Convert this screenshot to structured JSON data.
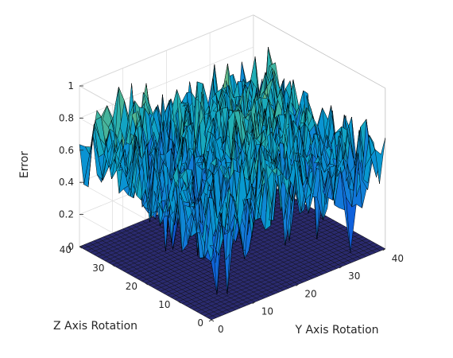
{
  "chart_data": {
    "type": "surface",
    "title": "",
    "xlabel": "Y Axis Rotation",
    "ylabel": "Z Axis Rotation",
    "zlabel": "Error",
    "xlim": [
      0,
      40
    ],
    "ylim": [
      0,
      40
    ],
    "zlim": [
      0,
      1
    ],
    "x_ticks": [
      "0",
      "10",
      "20",
      "30",
      "40"
    ],
    "y_ticks": [
      "0",
      "10",
      "20",
      "30",
      "40"
    ],
    "z_ticks": [
      "0",
      "0.2",
      "0.4",
      "0.6",
      "0.8",
      "1"
    ],
    "grid": true,
    "colormap": "parula",
    "grid_resolution": 36,
    "floor_value": 0,
    "floor_color": "#2a2a6e",
    "surface_profile": [
      {
        "region": "left/back edge (Z≈30–40, Y≈0–10)",
        "error": [
          0.3,
          0.75
        ]
      },
      {
        "region": "central ridge crossing grid",
        "error": [
          0.4,
          0.85
        ]
      },
      {
        "region": "right edge (Y≈30–40, Z≈0–10)",
        "error": [
          0.3,
          0.6
        ]
      },
      {
        "region": "deep dips near center front",
        "error": [
          0.05,
          0.3
        ]
      }
    ]
  }
}
